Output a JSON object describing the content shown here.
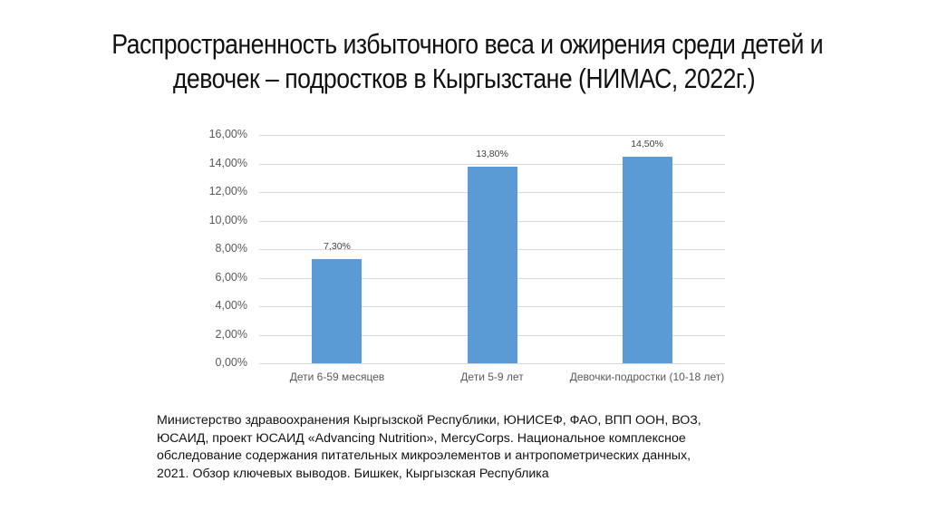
{
  "title": {
    "line1": "Распространенность избыточного веса и ожирения среди детей и",
    "line2": "девочек – подростков в Кыргызстане (НИМАС, 2022г.)"
  },
  "chart_data": {
    "type": "bar",
    "title": "Распространенность избыточного веса и ожирения среди детей и девочек – подростков в Кыргызстане (НИМАС, 2022г.)",
    "categories": [
      "Дети 6-59 месяцев",
      "Дети 5-9 лет",
      "Девочки-подростки (10-18 лет)"
    ],
    "values": [
      7.3,
      13.8,
      14.5
    ],
    "data_labels": [
      "7,30%",
      "13,80%",
      "14,50%"
    ],
    "xlabel": "",
    "ylabel": "",
    "ylim": [
      0,
      16
    ],
    "y_ticks": [
      "0,00%",
      "2,00%",
      "4,00%",
      "6,00%",
      "8,00%",
      "10,00%",
      "12,00%",
      "14,00%",
      "16,00%"
    ],
    "grid": true,
    "legend": "none",
    "bar_color": "#5b9bd5"
  },
  "source": {
    "line1": "Министерство здравоохранения Кыргызской Республики, ЮНИСЕФ, ФАО, ВПП ООН, ВОЗ,",
    "line2": "ЮСАИД, проект ЮСАИД «Advancing Nutrition», MercyCorps. Национальное комплексное",
    "line3": "обследование содержания питательных микроэлементов и антропометрических данных,",
    "line4": "2021. Обзор ключевых выводов. Бишкек, Кыргызская Республика"
  }
}
